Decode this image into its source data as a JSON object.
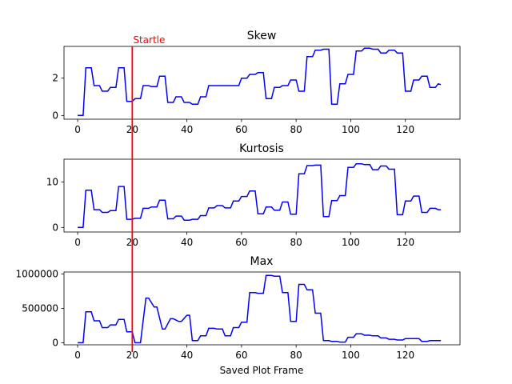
{
  "colors": {
    "series": "#0000ff",
    "marker": "#ff0000",
    "axes": "#000000"
  },
  "annotation": {
    "label": "Startle",
    "x": 20
  },
  "xlabel": "Saved Plot Frame",
  "xticks": [
    0,
    20,
    40,
    60,
    80,
    100,
    120
  ],
  "chart_data": [
    {
      "type": "line",
      "title": "Skew",
      "xlim": [
        -5,
        140
      ],
      "ylim": [
        -0.2,
        3.7
      ],
      "yticks": [
        0,
        2
      ],
      "ytick_labels": [
        "0",
        "2"
      ],
      "series": [
        {
          "x": [
            0,
            2,
            3,
            5,
            6,
            8,
            9,
            11,
            12,
            14,
            15,
            17,
            18,
            20,
            21,
            23,
            24,
            26,
            27,
            29,
            30,
            32,
            33,
            35,
            36,
            38,
            39,
            41,
            42,
            44,
            45,
            47,
            48,
            50,
            51,
            53,
            54,
            56,
            57,
            59,
            60,
            62,
            63,
            65,
            66,
            68,
            69,
            71,
            72,
            74,
            75,
            77,
            78,
            80,
            81,
            83,
            84,
            86,
            87,
            89,
            90,
            92,
            93,
            95,
            96,
            98,
            99,
            101,
            102,
            104,
            105,
            107,
            108,
            110,
            111,
            113,
            114,
            116,
            117,
            119,
            120,
            122,
            123,
            125,
            126,
            128,
            129,
            131,
            132,
            133
          ],
          "y": [
            0,
            0,
            2.55,
            2.55,
            1.6,
            1.6,
            1.3,
            1.3,
            1.5,
            1.5,
            2.55,
            2.55,
            0.75,
            0.75,
            0.9,
            0.9,
            1.6,
            1.6,
            1.55,
            1.55,
            2.1,
            2.1,
            0.7,
            0.7,
            1.0,
            1.0,
            0.7,
            0.7,
            0.6,
            0.6,
            1.0,
            1.0,
            1.6,
            1.6,
            1.6,
            1.6,
            1.6,
            1.6,
            1.6,
            1.6,
            2.0,
            2.0,
            2.2,
            2.2,
            2.3,
            2.3,
            0.9,
            0.9,
            1.5,
            1.5,
            1.6,
            1.6,
            1.9,
            1.9,
            1.3,
            1.3,
            3.15,
            3.15,
            3.5,
            3.5,
            3.55,
            3.55,
            0.6,
            0.6,
            1.7,
            1.7,
            2.2,
            2.2,
            3.45,
            3.45,
            3.6,
            3.6,
            3.55,
            3.55,
            3.35,
            3.35,
            3.5,
            3.5,
            3.35,
            3.35,
            1.3,
            1.3,
            1.9,
            1.9,
            2.1,
            2.1,
            1.5,
            1.5,
            1.7,
            1.65
          ]
        }
      ]
    },
    {
      "type": "line",
      "title": "Kurtosis",
      "xlim": [
        -5,
        140
      ],
      "ylim": [
        -1,
        15
      ],
      "yticks": [
        0,
        10
      ],
      "ytick_labels": [
        "0",
        "10"
      ],
      "series": [
        {
          "x": [
            0,
            2,
            3,
            5,
            6,
            8,
            9,
            11,
            12,
            14,
            15,
            17,
            18,
            20,
            21,
            23,
            24,
            26,
            27,
            29,
            30,
            32,
            33,
            35,
            36,
            38,
            39,
            41,
            42,
            44,
            45,
            47,
            48,
            50,
            51,
            53,
            54,
            56,
            57,
            59,
            60,
            62,
            63,
            65,
            66,
            68,
            69,
            71,
            72,
            74,
            75,
            77,
            78,
            80,
            81,
            83,
            84,
            86,
            87,
            89,
            90,
            92,
            93,
            95,
            96,
            98,
            99,
            101,
            102,
            104,
            105,
            107,
            108,
            110,
            111,
            113,
            114,
            116,
            117,
            119,
            120,
            122,
            123,
            125,
            126,
            128,
            129,
            131,
            132,
            133
          ],
          "y": [
            0,
            0,
            8.2,
            8.2,
            3.9,
            3.9,
            3.3,
            3.3,
            3.7,
            3.7,
            9.0,
            9.0,
            1.8,
            1.8,
            2.0,
            2.0,
            4.2,
            4.2,
            4.5,
            4.5,
            6.0,
            6.0,
            1.9,
            1.9,
            2.5,
            2.5,
            1.6,
            1.6,
            1.8,
            1.8,
            2.6,
            2.6,
            4.3,
            4.3,
            4.8,
            4.8,
            4.3,
            4.3,
            5.8,
            5.8,
            6.8,
            6.8,
            8.0,
            8.0,
            3.0,
            3.0,
            4.5,
            4.5,
            3.8,
            3.8,
            5.6,
            5.6,
            2.9,
            2.9,
            11.8,
            11.8,
            13.6,
            13.6,
            13.7,
            13.7,
            2.4,
            2.4,
            5.9,
            5.9,
            7.0,
            7.0,
            13.2,
            13.2,
            14.0,
            14.0,
            13.8,
            13.8,
            12.7,
            12.7,
            13.5,
            13.5,
            12.8,
            12.8,
            2.8,
            2.8,
            5.8,
            5.8,
            6.9,
            6.9,
            3.3,
            3.3,
            4.2,
            4.2,
            3.9,
            3.9
          ]
        }
      ]
    },
    {
      "type": "line",
      "title": "Max",
      "xlim": [
        -5,
        140
      ],
      "ylim": [
        -30000,
        1030000
      ],
      "yticks": [
        0,
        500000,
        1000000
      ],
      "ytick_labels": [
        "0",
        "500000",
        "1000000"
      ],
      "series": [
        {
          "x": [
            0,
            2,
            3,
            5,
            6,
            8,
            9,
            11,
            12,
            14,
            15,
            17,
            18,
            19,
            20,
            21,
            22,
            23,
            25,
            26,
            28,
            29,
            31,
            32,
            34,
            35,
            37,
            38,
            40,
            41,
            42,
            44,
            45,
            47,
            48,
            50,
            51,
            53,
            54,
            56,
            57,
            59,
            60,
            62,
            63,
            65,
            66,
            68,
            69,
            71,
            72,
            74,
            75,
            77,
            78,
            80,
            81,
            83,
            84,
            86,
            87,
            89,
            90,
            92,
            93,
            95,
            96,
            98,
            99,
            101,
            102,
            104,
            105,
            107,
            108,
            110,
            111,
            113,
            114,
            116,
            117,
            119,
            120,
            122,
            123,
            125,
            126,
            128,
            129,
            131,
            132,
            133
          ],
          "y": [
            0,
            0,
            450000,
            450000,
            320000,
            320000,
            220000,
            220000,
            260000,
            260000,
            340000,
            340000,
            160000,
            160000,
            160000,
            0,
            0,
            0,
            650000,
            650000,
            520000,
            520000,
            200000,
            200000,
            350000,
            350000,
            310000,
            310000,
            400000,
            400000,
            30000,
            30000,
            100000,
            100000,
            210000,
            210000,
            200000,
            200000,
            100000,
            100000,
            220000,
            220000,
            300000,
            300000,
            730000,
            730000,
            720000,
            720000,
            980000,
            980000,
            970000,
            970000,
            730000,
            730000,
            310000,
            310000,
            850000,
            850000,
            770000,
            770000,
            430000,
            430000,
            30000,
            30000,
            20000,
            20000,
            10000,
            10000,
            80000,
            80000,
            130000,
            130000,
            110000,
            110000,
            100000,
            100000,
            70000,
            70000,
            50000,
            50000,
            40000,
            40000,
            60000,
            60000,
            60000,
            60000,
            20000,
            20000,
            30000,
            30000,
            30000,
            30000
          ]
        }
      ]
    }
  ]
}
